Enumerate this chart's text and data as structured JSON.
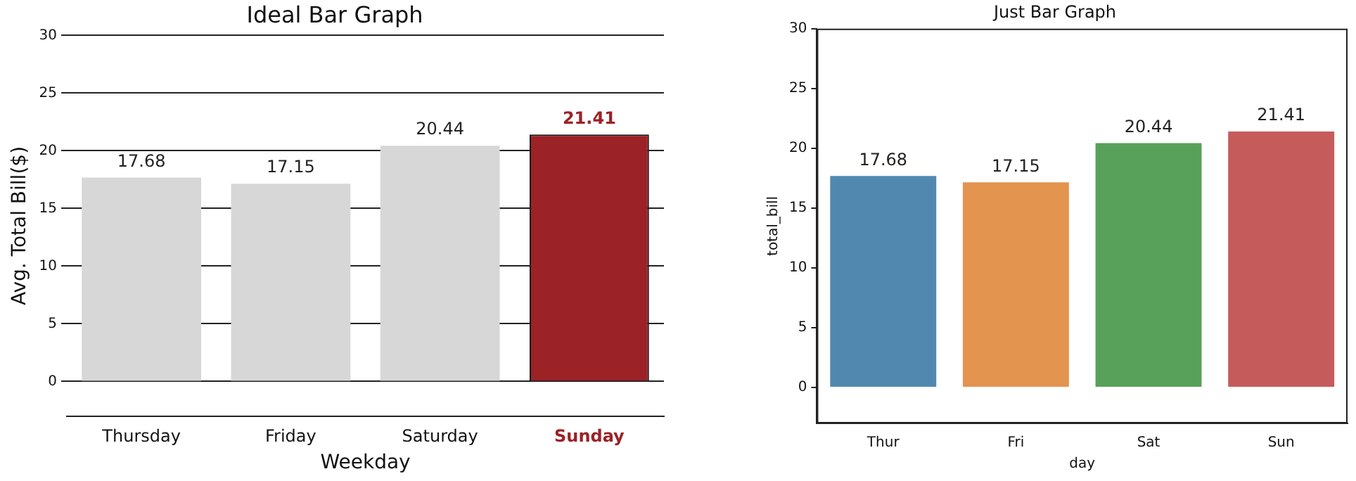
{
  "chart_data": [
    {
      "type": "bar",
      "title": "Ideal Bar Graph",
      "xlabel": "Weekday",
      "ylabel": "Avg. Total Bill($)",
      "categories": [
        "Thursday",
        "Friday",
        "Saturday",
        "Sunday"
      ],
      "values": [
        17.68,
        17.15,
        20.44,
        21.41
      ],
      "colors": [
        "#d7d7d7",
        "#d7d7d7",
        "#d7d7d7",
        "#9b2226"
      ],
      "ylim": [
        -3,
        30
      ],
      "yticks": [
        0,
        5,
        10,
        15,
        20,
        25,
        30
      ],
      "grid": "y",
      "data_labels": true
    },
    {
      "type": "bar",
      "title": "Just Bar Graph",
      "xlabel": "day",
      "ylabel": "total_bill",
      "categories": [
        "Thur",
        "Fri",
        "Sat",
        "Sun"
      ],
      "values": [
        17.68,
        17.15,
        20.44,
        21.41
      ],
      "colors": [
        "#5088b0",
        "#e3944f",
        "#58a15a",
        "#c65b5c"
      ],
      "ylim": [
        -3,
        30
      ],
      "yticks": [
        0,
        5,
        10,
        15,
        20,
        25,
        30
      ],
      "data_labels": true
    }
  ]
}
